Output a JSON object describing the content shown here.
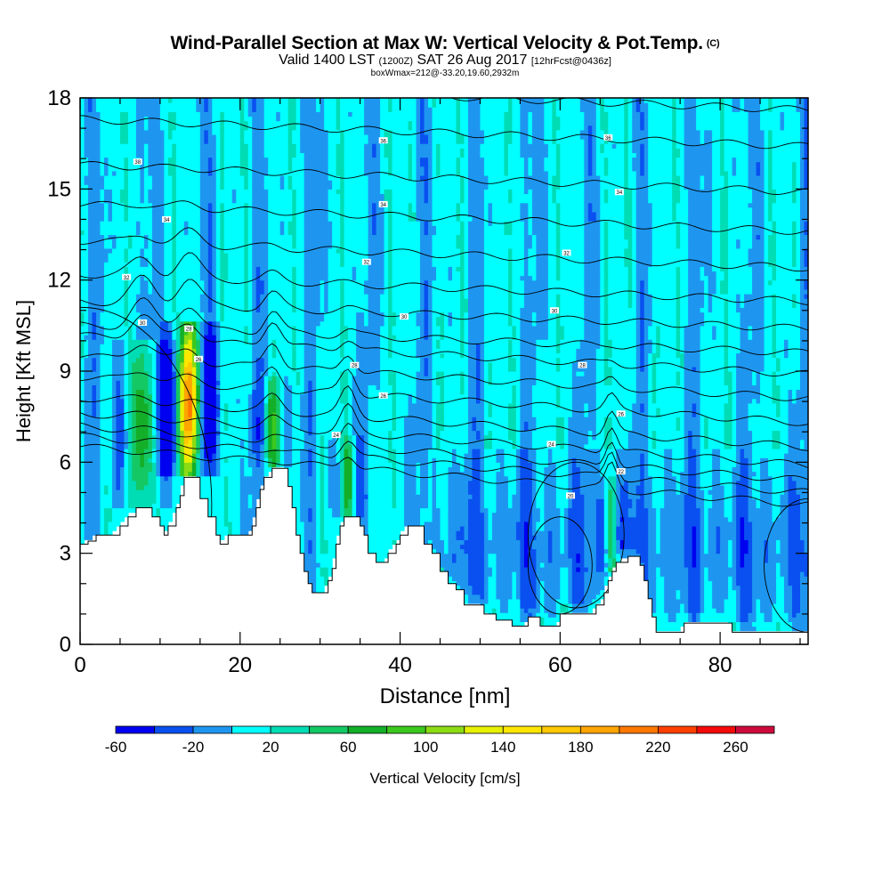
{
  "title": {
    "main": "Wind-Parallel Section at Max W: Vertical Velocity & Pot.Temp.",
    "copyright": "(C)",
    "valid_prefix": "Valid 1400 LST",
    "valid_utc": "(1200Z)",
    "valid_date": "SAT 26 Aug 2017",
    "forecast": "[12hrFcst@0436z]",
    "box_info": "boxWmax=212@-33.20,19.60,2932m"
  },
  "chart_data": {
    "type": "heatmap",
    "xlabel": "Distance [nm]",
    "ylabel": "Height [Kft MSL]",
    "xlim": [
      0,
      91
    ],
    "ylim": [
      0,
      18
    ],
    "x_ticks": [
      "0",
      "20",
      "40",
      "60",
      "80"
    ],
    "y_ticks": [
      "0",
      "3",
      "6",
      "9",
      "12",
      "15",
      "18"
    ],
    "colorbar": {
      "label": "Vertical Velocity [cm/s]",
      "levels": [
        -60,
        -40,
        -20,
        0,
        20,
        40,
        60,
        80,
        100,
        120,
        140,
        160,
        180,
        200,
        220,
        240,
        260,
        280
      ],
      "tick_labels": [
        "-60",
        "-20",
        "20",
        "60",
        "100",
        "140",
        "180",
        "220",
        "260"
      ],
      "colors": [
        "#0000f0",
        "#0a50f0",
        "#1e96f0",
        "#00ffff",
        "#00dcb4",
        "#14c864",
        "#14af28",
        "#3cc81e",
        "#8cdc14",
        "#e6f000",
        "#ffe600",
        "#ffc800",
        "#ffa500",
        "#ff7800",
        "#ff4000",
        "#f50a0a",
        "#cd0a3c"
      ]
    },
    "terrain_kft": [
      [
        0,
        3.3
      ],
      [
        1,
        3.4
      ],
      [
        2,
        3.6
      ],
      [
        4,
        3.6
      ],
      [
        5,
        3.9
      ],
      [
        6,
        4.2
      ],
      [
        7,
        4.5
      ],
      [
        8.5,
        4.5
      ],
      [
        9,
        4.2
      ],
      [
        10,
        3.9
      ],
      [
        10.5,
        3.6
      ],
      [
        11,
        3.9
      ],
      [
        12,
        4.5
      ],
      [
        12.5,
        4.9
      ],
      [
        13,
        5.5
      ],
      [
        14.3,
        5.5
      ],
      [
        15,
        4.8
      ],
      [
        16,
        4.2
      ],
      [
        17,
        3.6
      ],
      [
        17.5,
        3.3
      ],
      [
        18.5,
        3.6
      ],
      [
        21,
        3.6
      ],
      [
        21.5,
        3.9
      ],
      [
        22,
        4.5
      ],
      [
        22.5,
        5.1
      ],
      [
        23,
        5.5
      ],
      [
        24,
        5.8
      ],
      [
        25.3,
        5.8
      ],
      [
        26,
        5.2
      ],
      [
        26.5,
        4.5
      ],
      [
        27,
        3.6
      ],
      [
        27.5,
        3.0
      ],
      [
        28,
        2.4
      ],
      [
        28.5,
        2.0
      ],
      [
        29,
        1.7
      ],
      [
        30.5,
        1.7
      ],
      [
        31,
        2.1
      ],
      [
        31.5,
        2.5
      ],
      [
        32,
        3.3
      ],
      [
        32.5,
        3.9
      ],
      [
        33,
        4.2
      ],
      [
        34.5,
        4.2
      ],
      [
        35,
        3.9
      ],
      [
        35.5,
        3.6
      ],
      [
        36,
        3.0
      ],
      [
        37,
        2.7
      ],
      [
        38,
        2.7
      ],
      [
        38.5,
        3.0
      ],
      [
        39.5,
        3.3
      ],
      [
        40,
        3.6
      ],
      [
        41,
        3.9
      ],
      [
        42,
        3.9
      ],
      [
        43,
        3.3
      ],
      [
        44,
        3.0
      ],
      [
        45,
        2.4
      ],
      [
        46,
        2.0
      ],
      [
        47,
        1.8
      ],
      [
        48,
        1.3
      ],
      [
        49,
        1.3
      ],
      [
        50,
        1.3
      ],
      [
        50.5,
        1.0
      ],
      [
        51,
        1.0
      ],
      [
        52,
        0.8
      ],
      [
        53,
        0.8
      ],
      [
        54,
        0.6
      ],
      [
        55.5,
        0.6
      ],
      [
        56,
        0.9
      ],
      [
        57,
        0.9
      ],
      [
        57.5,
        0.6
      ],
      [
        59.5,
        0.6
      ],
      [
        60,
        1.0
      ],
      [
        64,
        1.0
      ],
      [
        64.5,
        1.3
      ],
      [
        65,
        1.3
      ],
      [
        65.5,
        1.7
      ],
      [
        66,
        2.1
      ],
      [
        66.5,
        2.4
      ],
      [
        67,
        2.7
      ],
      [
        68.5,
        2.9
      ],
      [
        69.5,
        2.9
      ],
      [
        70,
        2.6
      ],
      [
        70.5,
        2.1
      ],
      [
        71,
        1.5
      ],
      [
        71.5,
        0.9
      ],
      [
        72,
        0.4
      ],
      [
        75,
        0.4
      ],
      [
        75.5,
        0.7
      ],
      [
        81,
        0.7
      ],
      [
        81.5,
        0.4
      ],
      [
        91,
        0.4
      ]
    ],
    "updrafts": [
      {
        "x": 13.6,
        "half_width": 1.2,
        "z_top": 10.3,
        "peak_w": 212
      },
      {
        "x": 7.8,
        "half_width": 1.3,
        "z_top": 9.7,
        "peak_w": 95
      },
      {
        "x": 24.1,
        "half_width": 0.9,
        "z_top": 8.5,
        "peak_w": 70
      },
      {
        "x": 33.5,
        "half_width": 0.8,
        "z_top": 6.6,
        "peak_w": 65
      },
      {
        "x": 66.4,
        "half_width": 0.6,
        "z_top": 5.3,
        "peak_w": 60
      }
    ],
    "theta_contour_labels": [
      {
        "x": 7.2,
        "z": 15.9,
        "label": "38"
      },
      {
        "x": 10.8,
        "z": 14.0,
        "label": "34"
      },
      {
        "x": 5.8,
        "z": 12.1,
        "label": "32"
      },
      {
        "x": 7.8,
        "z": 10.6,
        "label": "30"
      },
      {
        "x": 13.6,
        "z": 10.4,
        "label": "28"
      },
      {
        "x": 14.8,
        "z": 9.4,
        "label": "26"
      },
      {
        "x": 37.9,
        "z": 16.6,
        "label": "36"
      },
      {
        "x": 37.9,
        "z": 14.5,
        "label": "34"
      },
      {
        "x": 35.8,
        "z": 12.6,
        "label": "32"
      },
      {
        "x": 40.5,
        "z": 10.8,
        "label": "30"
      },
      {
        "x": 34.3,
        "z": 9.2,
        "label": "28"
      },
      {
        "x": 37.9,
        "z": 8.2,
        "label": "26"
      },
      {
        "x": 32.0,
        "z": 6.9,
        "label": "24"
      },
      {
        "x": 66.0,
        "z": 16.7,
        "label": "36"
      },
      {
        "x": 67.4,
        "z": 14.9,
        "label": "34"
      },
      {
        "x": 60.8,
        "z": 12.9,
        "label": "32"
      },
      {
        "x": 59.3,
        "z": 11.0,
        "label": "30"
      },
      {
        "x": 62.8,
        "z": 9.2,
        "label": "28"
      },
      {
        "x": 67.6,
        "z": 7.6,
        "label": "26"
      },
      {
        "x": 58.9,
        "z": 6.6,
        "label": "24"
      },
      {
        "x": 67.6,
        "z": 5.7,
        "label": "22"
      },
      {
        "x": 61.3,
        "z": 4.9,
        "label": "20"
      }
    ]
  }
}
